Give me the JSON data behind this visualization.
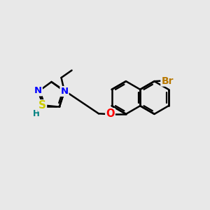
{
  "bg_color": "#e8e8e8",
  "bond_color": "#000000",
  "bond_width": 1.8,
  "atom_colors": {
    "N": "#0000ff",
    "S": "#cccc00",
    "O": "#ff0000",
    "Br": "#b87800",
    "H": "#008080",
    "C": "#000000"
  },
  "font_size": 9.5,
  "figsize": [
    3.0,
    3.0
  ],
  "dpi": 100
}
